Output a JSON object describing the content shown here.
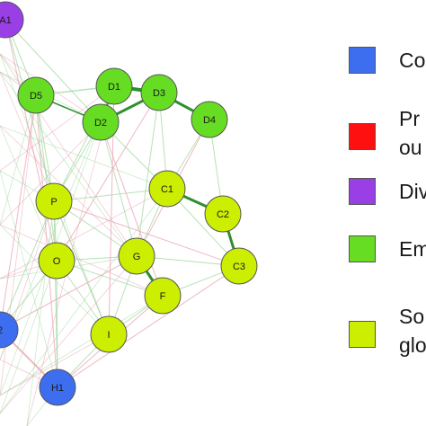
{
  "colors": {
    "blue": "#3d6ef0",
    "red": "#ff1010",
    "purple": "#9a3fe6",
    "green": "#66dd22",
    "yellowgreen": "#ccee00",
    "edge_dark_green": "#2f8f2f",
    "edge_light_green": "#9fd89f",
    "edge_pink": "#e8a0b0",
    "node_stroke": "#555555"
  },
  "legend": [
    {
      "color": "#3d6ef0",
      "lines": [
        "Co"
      ]
    },
    {
      "color": "#ff1010",
      "lines": [
        "Pr",
        "ou"
      ]
    },
    {
      "color": "#9a3fe6",
      "lines": [
        "Div"
      ]
    },
    {
      "color": "#66dd22",
      "lines": [
        "Em"
      ]
    },
    {
      "color": "#ccee00",
      "lines": [
        "So",
        "glo"
      ]
    }
  ],
  "nodes": [
    {
      "id": "A1",
      "label": "A1",
      "group": "purple"
    },
    {
      "id": "D1",
      "label": "D1",
      "group": "green"
    },
    {
      "id": "D2",
      "label": "D2",
      "group": "green"
    },
    {
      "id": "D3",
      "label": "D3",
      "group": "green"
    },
    {
      "id": "D4",
      "label": "D4",
      "group": "green"
    },
    {
      "id": "D5",
      "label": "D5",
      "group": "green"
    },
    {
      "id": "C1",
      "label": "C1",
      "group": "yellowgreen"
    },
    {
      "id": "C2",
      "label": "C2",
      "group": "yellowgreen"
    },
    {
      "id": "C3",
      "label": "C3",
      "group": "yellowgreen"
    },
    {
      "id": "P",
      "label": "P",
      "group": "yellowgreen"
    },
    {
      "id": "O",
      "label": "O",
      "group": "yellowgreen"
    },
    {
      "id": "G",
      "label": "G",
      "group": "yellowgreen"
    },
    {
      "id": "F",
      "label": "F",
      "group": "yellowgreen"
    },
    {
      "id": "I",
      "label": "I",
      "group": "yellowgreen"
    },
    {
      "id": "B2",
      "label": "2",
      "group": "blue"
    },
    {
      "id": "H1",
      "label": "H1",
      "group": "blue"
    }
  ],
  "edges": [
    {
      "from": "D1",
      "to": "D3",
      "style": "dark",
      "w": 4
    },
    {
      "from": "D2",
      "to": "D3",
      "style": "dark",
      "w": 3
    },
    {
      "from": "D3",
      "to": "D4",
      "style": "dark",
      "w": 3
    },
    {
      "from": "D1",
      "to": "D2",
      "style": "dark",
      "w": 2
    },
    {
      "from": "D5",
      "to": "D2",
      "style": "dark",
      "w": 1.5
    },
    {
      "from": "D5",
      "to": "D1",
      "style": "light",
      "w": 1.5
    },
    {
      "from": "C1",
      "to": "C2",
      "style": "dark",
      "w": 3
    },
    {
      "from": "C2",
      "to": "C3",
      "style": "dark",
      "w": 3
    },
    {
      "from": "G",
      "to": "F",
      "style": "dark",
      "w": 3
    },
    {
      "from": "H1",
      "to": "B2",
      "style": "pink",
      "w": 2
    },
    {
      "from": "A1",
      "to": "D5",
      "style": "light",
      "w": 1
    },
    {
      "from": "A1",
      "to": "P",
      "style": "light",
      "w": 1
    },
    {
      "from": "D5",
      "to": "P",
      "style": "light",
      "w": 1
    },
    {
      "from": "D5",
      "to": "O",
      "style": "light",
      "w": 1
    },
    {
      "from": "D2",
      "to": "P",
      "style": "light",
      "w": 1
    },
    {
      "from": "D2",
      "to": "G",
      "style": "light",
      "w": 1
    },
    {
      "from": "D2",
      "to": "C1",
      "style": "light",
      "w": 1
    },
    {
      "from": "D1",
      "to": "P",
      "style": "light",
      "w": 1
    },
    {
      "from": "D3",
      "to": "C1",
      "style": "light",
      "w": 1
    },
    {
      "from": "D4",
      "to": "C2",
      "style": "light",
      "w": 1
    },
    {
      "from": "D4",
      "to": "C1",
      "style": "light",
      "w": 1
    },
    {
      "from": "D3",
      "to": "G",
      "style": "light",
      "w": 1
    },
    {
      "from": "P",
      "to": "O",
      "style": "light",
      "w": 1
    },
    {
      "from": "P",
      "to": "G",
      "style": "light",
      "w": 1
    },
    {
      "from": "P",
      "to": "C1",
      "style": "light",
      "w": 1
    },
    {
      "from": "P",
      "to": "I",
      "style": "light",
      "w": 1
    },
    {
      "from": "O",
      "to": "G",
      "style": "light",
      "w": 1
    },
    {
      "from": "O",
      "to": "I",
      "style": "light",
      "w": 1
    },
    {
      "from": "O",
      "to": "F",
      "style": "light",
      "w": 1
    },
    {
      "from": "G",
      "to": "I",
      "style": "light",
      "w": 1
    },
    {
      "from": "G",
      "to": "C1",
      "style": "light",
      "w": 1
    },
    {
      "from": "G",
      "to": "C3",
      "style": "light",
      "w": 1
    },
    {
      "from": "F",
      "to": "C3",
      "style": "light",
      "w": 1
    },
    {
      "from": "F",
      "to": "I",
      "style": "light",
      "w": 1
    },
    {
      "from": "C1",
      "to": "C3",
      "style": "light",
      "w": 1
    },
    {
      "from": "I",
      "to": "H1",
      "style": "light",
      "w": 1
    },
    {
      "from": "O",
      "to": "H1",
      "style": "light",
      "w": 1
    },
    {
      "from": "P",
      "to": "H1",
      "style": "light",
      "w": 1
    },
    {
      "from": "B2",
      "to": "O",
      "style": "light",
      "w": 1
    },
    {
      "from": "B2",
      "to": "P",
      "style": "light",
      "w": 1
    },
    {
      "from": "H1",
      "to": "F",
      "style": "pink",
      "w": 1
    },
    {
      "from": "H1",
      "to": "C3",
      "style": "pink",
      "w": 1
    },
    {
      "from": "B2",
      "to": "G",
      "style": "pink",
      "w": 1
    },
    {
      "from": "B2",
      "to": "D5",
      "style": "pink",
      "w": 1
    },
    {
      "from": "H1",
      "to": "D5",
      "style": "pink",
      "w": 1
    },
    {
      "from": "I",
      "to": "D1",
      "style": "pink",
      "w": 1
    },
    {
      "from": "O",
      "to": "D3",
      "style": "pink",
      "w": 1
    },
    {
      "from": "G",
      "to": "D4",
      "style": "pink",
      "w": 1
    },
    {
      "from": "F",
      "to": "D2",
      "style": "pink",
      "w": 1
    },
    {
      "from": "P",
      "to": "C3",
      "style": "pink",
      "w": 1
    },
    {
      "from": "A1",
      "to": "O",
      "style": "pink",
      "w": 1
    },
    {
      "from": "A1",
      "to": "D2",
      "style": "light",
      "w": 1
    }
  ]
}
